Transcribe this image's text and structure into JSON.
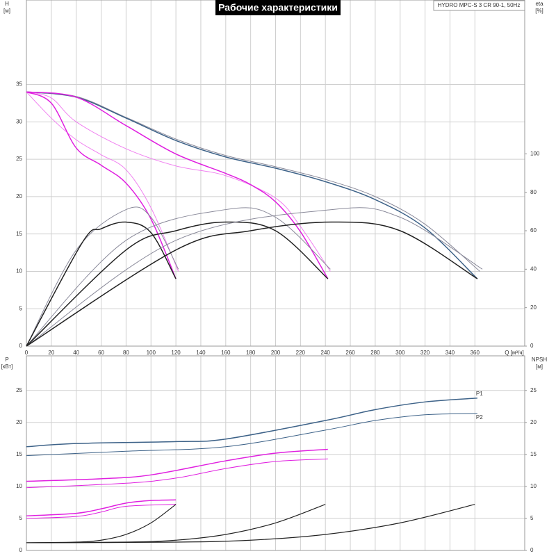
{
  "chart_data": [
    {
      "type": "line",
      "title": "Рабочие характеристики",
      "note": "HYDRO MPC-S 3 CR 90-1, 50Hz",
      "ylabel": "H",
      "yunit": "[м]",
      "y2label": "eta",
      "y2unit": "[%]",
      "xlabel": "Q [м³/ч]",
      "xlim": [
        0,
        400
      ],
      "xticks": [
        0,
        20,
        40,
        60,
        80,
        100,
        120,
        140,
        160,
        180,
        200,
        220,
        240,
        260,
        280,
        300,
        320,
        340,
        360
      ],
      "ylim": [
        0,
        46.3
      ],
      "yticks": [
        0,
        5,
        10,
        15,
        20,
        25,
        30,
        35
      ],
      "y2lim": [
        0,
        180
      ],
      "y2ticks": [
        0,
        20,
        40,
        60,
        80,
        100
      ],
      "grid": true,
      "series": [
        {
          "color": "#8a8a9a",
          "linewidth": 1,
          "x": [
            0,
            40,
            80,
            120,
            160,
            200,
            240,
            280,
            320,
            364
          ],
          "values": [
            34,
            33.4,
            30.6,
            27.7,
            25.5,
            24,
            22.3,
            20,
            16.3,
            10
          ]
        },
        {
          "color": "#3d6288",
          "linewidth": 1.5,
          "x": [
            0,
            40,
            80,
            120,
            160,
            200,
            240,
            280,
            320,
            362
          ],
          "values": [
            34,
            33.3,
            30.5,
            27.5,
            25.3,
            23.8,
            22,
            19.6,
            15.8,
            9
          ]
        },
        {
          "color": "#f080f0",
          "linewidth": 1,
          "x": [
            0,
            20,
            40,
            80,
            120,
            160,
            200,
            220,
            244
          ],
          "values": [
            34,
            33.2,
            30,
            26.4,
            24.1,
            22.8,
            19.8,
            16,
            10
          ]
        },
        {
          "color": "#e020e0",
          "linewidth": 1.5,
          "x": [
            0,
            40,
            80,
            120,
            160,
            180,
            200,
            220,
            242
          ],
          "values": [
            34,
            33.3,
            29.5,
            25.7,
            23.1,
            21.6,
            19.3,
            15.3,
            9
          ]
        },
        {
          "color": "#f080f0",
          "linewidth": 1,
          "x": [
            0,
            20,
            40,
            60,
            80,
            100,
            122
          ],
          "values": [
            34,
            30.5,
            27.6,
            25.6,
            23.6,
            18.5,
            10
          ]
        },
        {
          "color": "#e020e0",
          "linewidth": 1.5,
          "x": [
            0,
            20,
            40,
            60,
            80,
            100,
            120
          ],
          "values": [
            34,
            32.5,
            26.5,
            24.2,
            21.8,
            17,
            9
          ]
        },
        {
          "color": "#8a8a9a",
          "linewidth": 1,
          "axis": "y2",
          "x": [
            0,
            40,
            80,
            100,
            122
          ],
          "values": [
            0,
            50,
            71,
            67,
            40
          ]
        },
        {
          "color": "#222222",
          "linewidth": 1.5,
          "axis": "y2",
          "x": [
            0,
            45,
            60,
            80,
            100,
            120
          ],
          "values": [
            0,
            54,
            61,
            64.5,
            59,
            35
          ]
        },
        {
          "color": "#8a8a9a",
          "linewidth": 1,
          "axis": "y2",
          "x": [
            0,
            80,
            160,
            200,
            244
          ],
          "values": [
            0,
            55,
            71,
            67,
            40
          ]
        },
        {
          "color": "#222222",
          "linewidth": 1.5,
          "axis": "y2",
          "x": [
            0,
            80,
            120,
            160,
            200,
            242
          ],
          "values": [
            0,
            50,
            60,
            64.5,
            60,
            35
          ]
        },
        {
          "color": "#8a8a9a",
          "linewidth": 1,
          "axis": "y2",
          "x": [
            0,
            120,
            245,
            300,
            366
          ],
          "values": [
            0,
            55,
            71,
            67,
            40
          ]
        },
        {
          "color": "#222222",
          "linewidth": 1.5,
          "axis": "y2",
          "x": [
            0,
            120,
            180,
            245,
            300,
            362
          ],
          "values": [
            0,
            50,
            60,
            64.5,
            60,
            35
          ]
        }
      ]
    },
    {
      "type": "line",
      "ylabel": "P",
      "yunit": "[кВт]",
      "y2label": "NPSH",
      "y2unit": "[м]",
      "xlim": [
        0,
        400
      ],
      "xticks": [
        0,
        20,
        40,
        60,
        80,
        100,
        120,
        140,
        160,
        180,
        200,
        220,
        240,
        260,
        280,
        300,
        320,
        340,
        360
      ],
      "ylim": [
        0,
        30.4
      ],
      "yticks": [
        0,
        5,
        10,
        15,
        20,
        25
      ],
      "y2lim": [
        0,
        30.4
      ],
      "y2ticks": [
        0,
        5,
        10,
        15,
        20,
        25
      ],
      "grid": true,
      "series": [
        {
          "name": "P1",
          "color": "#3d6288",
          "linewidth": 1.5,
          "x": [
            0,
            40,
            120,
            160,
            240,
            280,
            320,
            362
          ],
          "values": [
            16.2,
            16.7,
            17,
            17.4,
            20.3,
            22,
            23.2,
            23.8
          ]
        },
        {
          "name": "P2",
          "color": "#3d6288",
          "linewidth": 1,
          "x": [
            0,
            80,
            160,
            240,
            280,
            320,
            362
          ],
          "values": [
            14.8,
            15.5,
            16.2,
            18.8,
            20.3,
            21.2,
            21.4
          ]
        },
        {
          "color": "#e020e0",
          "linewidth": 1.5,
          "x": [
            0,
            60,
            100,
            160,
            200,
            242
          ],
          "values": [
            10.8,
            11.2,
            11.8,
            14,
            15.2,
            15.8
          ]
        },
        {
          "color": "#e020e0",
          "linewidth": 1,
          "x": [
            0,
            80,
            120,
            160,
            200,
            242
          ],
          "values": [
            9.8,
            10.5,
            11.3,
            12.8,
            13.9,
            14.3
          ]
        },
        {
          "color": "#e020e0",
          "linewidth": 1.5,
          "x": [
            0,
            40,
            60,
            80,
            100,
            120
          ],
          "values": [
            5.4,
            5.8,
            6.5,
            7.4,
            7.8,
            7.9
          ]
        },
        {
          "color": "#e020e0",
          "linewidth": 1,
          "x": [
            0,
            40,
            60,
            80,
            120
          ],
          "values": [
            5,
            5.3,
            6,
            6.9,
            7.2
          ]
        },
        {
          "color": "#222222",
          "linewidth": 1.2,
          "axis": "y2",
          "x": [
            0,
            40,
            60,
            80,
            100,
            120
          ],
          "values": [
            1.2,
            1.3,
            1.6,
            2.5,
            4.3,
            7.2
          ]
        },
        {
          "color": "#222222",
          "linewidth": 1.2,
          "axis": "y2",
          "x": [
            0,
            80,
            120,
            160,
            200,
            240
          ],
          "values": [
            1.2,
            1.3,
            1.6,
            2.5,
            4.3,
            7.2
          ]
        },
        {
          "color": "#222222",
          "linewidth": 1.2,
          "axis": "y2",
          "x": [
            0,
            120,
            180,
            240,
            300,
            360
          ],
          "values": [
            1.2,
            1.3,
            1.6,
            2.5,
            4.3,
            7.2
          ]
        }
      ]
    }
  ]
}
